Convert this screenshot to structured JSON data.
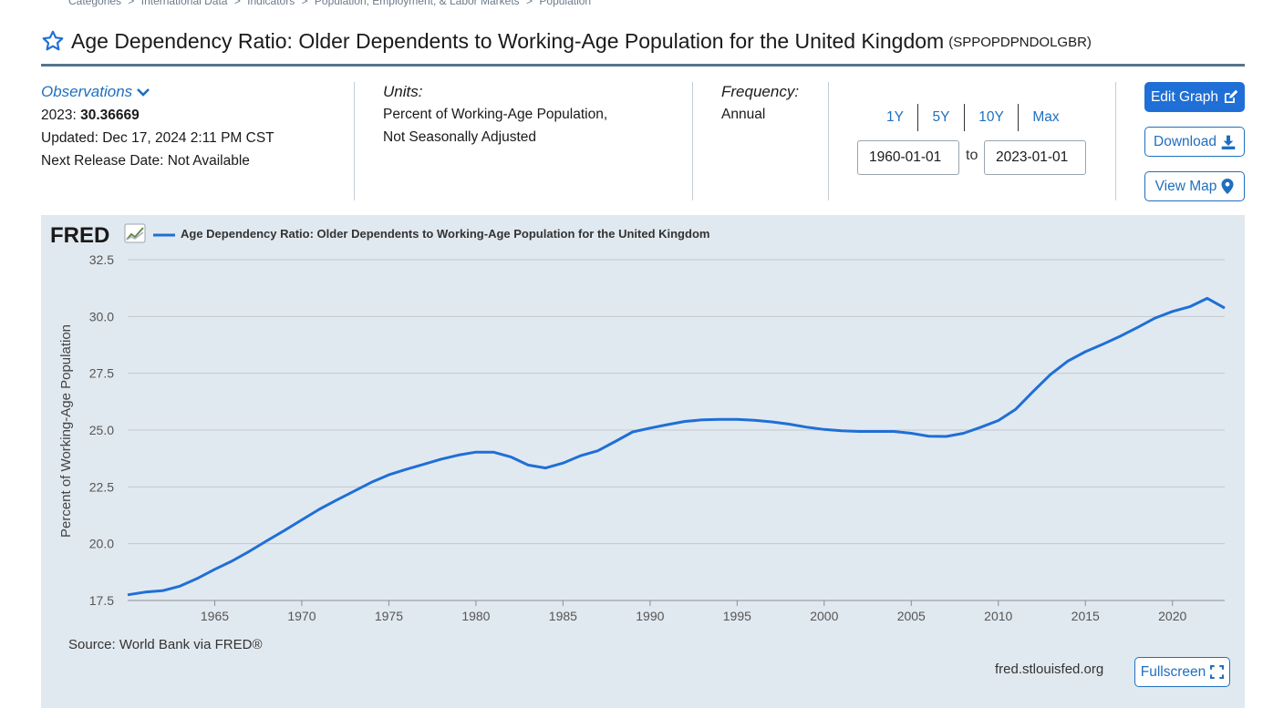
{
  "breadcrumb": [
    "Categories",
    ">",
    "International Data",
    ">",
    "Indicators",
    ">",
    "Population, Employment, & Labor Markets",
    ">",
    "Population"
  ],
  "title": "Age Dependency Ratio: Older Dependents to Working-Age Population for the United Kingdom",
  "series_id": "(SPPOPDPNDOLGBR)",
  "observations": {
    "label": "Observations",
    "latest_label": "2023:",
    "latest_value": "30.36669",
    "updated_label": "Updated:",
    "updated": "Dec 17, 2024 2:11 PM CST",
    "next_release_label": "Next Release Date:",
    "next_release": "Not Available"
  },
  "units": {
    "label": "Units:",
    "line1": "Percent of Working-Age Population,",
    "line2": "Not Seasonally Adjusted"
  },
  "frequency": {
    "label": "Frequency:",
    "value": "Annual"
  },
  "range_buttons": [
    "1Y",
    "5Y",
    "10Y",
    "Max"
  ],
  "date_range": {
    "start": "1960-01-01",
    "end": "2023-01-01",
    "to_label": "to"
  },
  "buttons": {
    "edit_graph": "Edit Graph",
    "download": "Download",
    "view_map": "View Map",
    "fullscreen": "Fullscreen"
  },
  "graph": {
    "logo_text": "FRED",
    "source": "Source: World Bank via FRED®",
    "site": "fred.stlouisfed.org"
  },
  "colors": {
    "accent": "#1f6fd6",
    "line": "#1f6fd6",
    "panel_bg": "#e1e9f0"
  },
  "chart_data": {
    "type": "line",
    "title": "Age Dependency Ratio: Older Dependents to Working-Age Population for the United Kingdom",
    "legend": "Age Dependency Ratio: Older Dependents to Working-Age Population for the United Kingdom",
    "xlabel": "",
    "ylabel": "Percent of Working-Age Population",
    "ylim": [
      17.5,
      32.5
    ],
    "yticks": [
      "17.5",
      "20.0",
      "22.5",
      "25.0",
      "27.5",
      "30.0",
      "32.5"
    ],
    "xticks": [
      "1965",
      "1970",
      "1975",
      "1980",
      "1985",
      "1990",
      "1995",
      "2000",
      "2005",
      "2010",
      "2015",
      "2020"
    ],
    "series": [
      {
        "name": "SPPOPDPNDOLGBR",
        "x": [
          1960,
          1961,
          1962,
          1963,
          1964,
          1965,
          1966,
          1967,
          1968,
          1969,
          1970,
          1971,
          1972,
          1973,
          1974,
          1975,
          1976,
          1977,
          1978,
          1979,
          1980,
          1981,
          1982,
          1983,
          1984,
          1985,
          1986,
          1987,
          1988,
          1989,
          1990,
          1991,
          1992,
          1993,
          1994,
          1995,
          1996,
          1997,
          1998,
          1999,
          2000,
          2001,
          2002,
          2003,
          2004,
          2005,
          2006,
          2007,
          2008,
          2009,
          2010,
          2011,
          2012,
          2013,
          2014,
          2015,
          2016,
          2017,
          2018,
          2019,
          2020,
          2021,
          2022,
          2023
        ],
        "values": [
          17.75,
          17.87,
          17.93,
          18.13,
          18.47,
          18.87,
          19.24,
          19.67,
          20.13,
          20.58,
          21.05,
          21.51,
          21.92,
          22.31,
          22.7,
          23.03,
          23.27,
          23.49,
          23.72,
          23.9,
          24.03,
          24.03,
          23.82,
          23.46,
          23.33,
          23.55,
          23.87,
          24.09,
          24.5,
          24.92,
          25.09,
          25.24,
          25.38,
          25.45,
          25.47,
          25.47,
          25.43,
          25.36,
          25.26,
          25.13,
          25.03,
          24.97,
          24.94,
          24.94,
          24.94,
          24.86,
          24.73,
          24.72,
          24.86,
          25.13,
          25.42,
          25.92,
          26.7,
          27.45,
          28.04,
          28.45,
          28.78,
          29.13,
          29.52,
          29.93,
          30.22,
          30.43,
          30.8,
          30.37
        ]
      }
    ]
  }
}
